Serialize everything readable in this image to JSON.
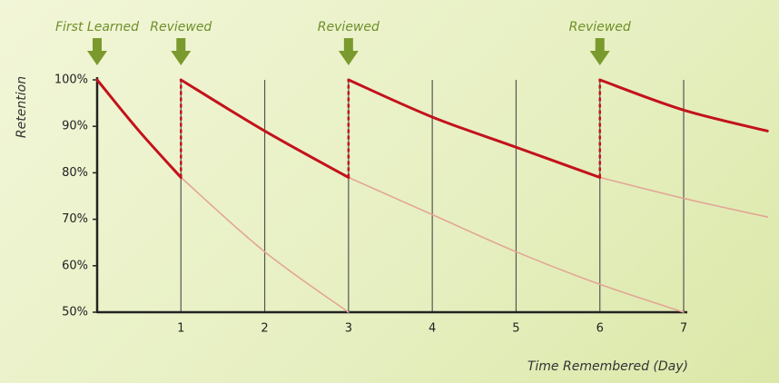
{
  "chart_data": {
    "type": "line",
    "xlabel": "Time Remembered (Day)",
    "ylabel": "Retention",
    "xlim": [
      0,
      7
    ],
    "xticks": [
      1,
      2,
      3,
      4,
      5,
      6,
      7
    ],
    "ylim": [
      50,
      100
    ],
    "yticks": [
      {
        "value": 50,
        "label": "50%"
      },
      {
        "value": 60,
        "label": "60%"
      },
      {
        "value": 70,
        "label": "70%"
      },
      {
        "value": 80,
        "label": "80%"
      },
      {
        "value": 90,
        "label": "90%"
      },
      {
        "value": 100,
        "label": "100%"
      }
    ],
    "grid": true,
    "annotations": [
      {
        "text": "First Learned",
        "x": 0
      },
      {
        "text": "Reviewed",
        "x": 1
      },
      {
        "text": "Reviewed",
        "x": 3
      },
      {
        "text": "Reviewed",
        "x": 6
      }
    ],
    "series": [
      {
        "color": "#e3a595",
        "x": [
          1,
          2,
          3
        ],
        "values": [
          79,
          63,
          50
        ]
      },
      {
        "color": "#e3a595",
        "x": [
          3,
          4,
          5,
          6,
          7
        ],
        "values": [
          79,
          71,
          63,
          56,
          50
        ]
      },
      {
        "color": "#e3a595",
        "x": [
          6,
          7,
          8
        ],
        "values": [
          79,
          74.5,
          70.5
        ]
      },
      {
        "color": "#c3121c",
        "x": [
          0,
          0.5,
          1
        ],
        "values": [
          100,
          89,
          79
        ]
      },
      {
        "color": "#c3121c",
        "x": [
          1,
          2,
          3
        ],
        "values": [
          100,
          89,
          79
        ]
      },
      {
        "color": "#c3121c",
        "x": [
          3,
          4,
          5,
          6
        ],
        "values": [
          100,
          92,
          85.5,
          79
        ]
      },
      {
        "color": "#c3121c",
        "x": [
          6,
          7,
          8
        ],
        "values": [
          100,
          93.5,
          89
        ]
      }
    ]
  }
}
